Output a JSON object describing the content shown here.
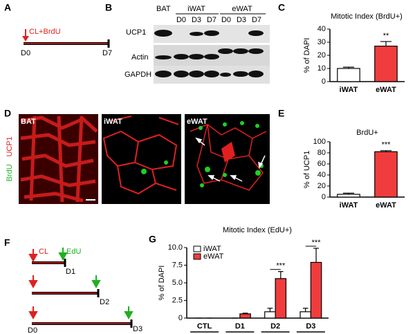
{
  "panels": {
    "letters": [
      "A",
      "B",
      "C",
      "D",
      "E",
      "F",
      "G"
    ],
    "a": {
      "treatment": "CL+BrdU",
      "start": "D0",
      "end": "D7"
    },
    "b": {
      "tissues": [
        "BAT",
        "iWAT",
        "eWAT"
      ],
      "days": [
        "D0",
        "D3",
        "D7",
        "D0",
        "D3",
        "D7"
      ],
      "rows": [
        "UCP1",
        "Actin",
        "GAPDH"
      ]
    },
    "d": {
      "images": [
        "BAT",
        "iWAT",
        "eWAT"
      ],
      "stain_green": "BrdU",
      "stain_red": "UCP1"
    },
    "f": {
      "treatment": "CL",
      "label": "EdU",
      "days": [
        "D1",
        "D2",
        "D3"
      ],
      "start": "D0"
    }
  },
  "chart_data": [
    {
      "type": "bar",
      "title": "Mitotic Index (BrdU+)",
      "ylabel": "% of DAPI",
      "categories": [
        "iWAT",
        "eWAT"
      ],
      "values": [
        10,
        27
      ],
      "errors": [
        1,
        3.5
      ],
      "colors": [
        "#ffffff",
        "#f03c3c"
      ],
      "ylim": [
        0,
        40
      ],
      "yticks": [
        0,
        10,
        20,
        30,
        40
      ],
      "annotations": [
        "**"
      ]
    },
    {
      "type": "bar",
      "title": "BrdU+",
      "ylabel": "% of UCP1",
      "categories": [
        "iWAT",
        "eWAT"
      ],
      "values": [
        5,
        82
      ],
      "errors": [
        2,
        2
      ],
      "colors": [
        "#ffffff",
        "#f03c3c"
      ],
      "ylim": [
        0,
        100
      ],
      "yticks": [
        0,
        20,
        40,
        60,
        80,
        100
      ],
      "annotations": [
        "***"
      ]
    },
    {
      "type": "bar",
      "title": "Mitotic Index (EdU+)",
      "ylabel": "% of DAPI",
      "categories": [
        "CTL",
        "D1",
        "D2",
        "D3"
      ],
      "series": [
        {
          "name": "iWAT",
          "color": "#ffffff",
          "values": [
            0,
            0,
            0.9,
            0.9
          ],
          "errors": [
            0,
            0,
            0.5,
            0.5
          ]
        },
        {
          "name": "eWAT",
          "color": "#f03c3c",
          "values": [
            0,
            0.6,
            5.6,
            7.9
          ],
          "errors": [
            0,
            0.1,
            1.0,
            2.0
          ]
        }
      ],
      "ylim": [
        0,
        10
      ],
      "yticks": [
        0,
        {
          "value": 2.5,
          "label": "2.5"
        },
        {
          "value": 5,
          "label": "5.0"
        },
        {
          "value": 7.5,
          "label": "7.5"
        },
        {
          "value": 10,
          "label": "10.0"
        }
      ],
      "annotations": [
        "***",
        "***"
      ]
    }
  ]
}
